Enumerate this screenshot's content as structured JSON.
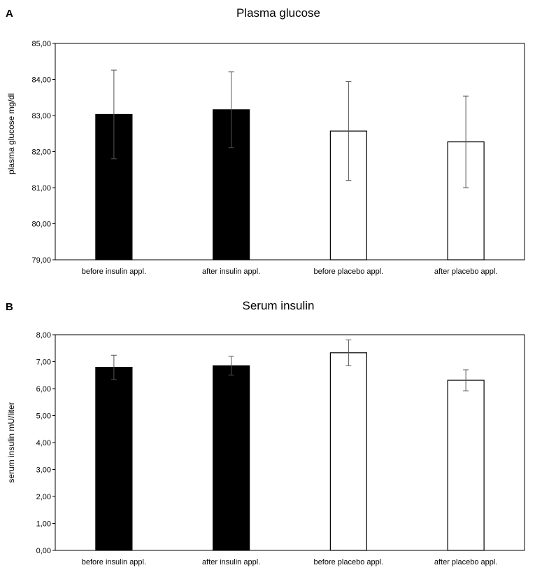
{
  "chart_data": [
    {
      "panel": "A",
      "type": "bar",
      "title": "Plasma glucose",
      "ylabel": "plasma glucose mg/dl",
      "xlabel": "",
      "categories": [
        "before insulin appl.",
        "after insulin appl.",
        "before placebo appl.",
        "after placebo appl."
      ],
      "values": [
        83.03,
        83.16,
        82.57,
        82.27
      ],
      "errors": [
        1.23,
        1.05,
        1.37,
        1.27
      ],
      "fills": [
        "#000000",
        "#000000",
        "#ffffff",
        "#ffffff"
      ],
      "ylim": [
        79,
        85
      ],
      "yticks": [
        "79,00",
        "80,00",
        "81,00",
        "82,00",
        "83,00",
        "84,00",
        "85,00"
      ],
      "grid": false
    },
    {
      "panel": "B",
      "type": "bar",
      "title": "Serum insulin",
      "ylabel": "serum insulin mU/liter",
      "xlabel": "",
      "categories": [
        "before insulin appl.",
        "after insulin appl.",
        "before placebo appl.",
        "after placebo appl."
      ],
      "values": [
        6.79,
        6.85,
        7.33,
        6.31
      ],
      "errors": [
        0.45,
        0.35,
        0.48,
        0.39
      ],
      "fills": [
        "#000000",
        "#000000",
        "#ffffff",
        "#ffffff"
      ],
      "ylim": [
        0,
        8
      ],
      "yticks": [
        "0,00",
        "1,00",
        "2,00",
        "3,00",
        "4,00",
        "5,00",
        "6,00",
        "7,00",
        "8,00"
      ],
      "grid": false
    }
  ]
}
